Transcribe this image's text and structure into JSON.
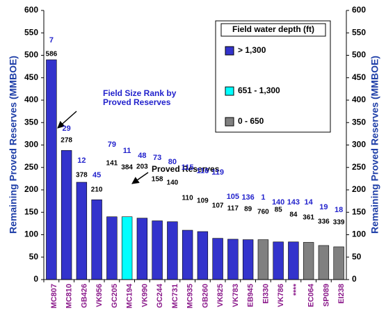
{
  "chart_data": {
    "type": "bar",
    "y_label": "Remaining Proved Reserves (MMBOE)",
    "y2_label": "Remaining Proved Reserves (MMBOE)",
    "categories": [
      "MC807",
      "MC810",
      "GB426",
      "VK956",
      "GC205",
      "MC194",
      "VK990",
      "GC244",
      "MC731",
      "MC935",
      "GB260",
      "VK825",
      "VK783",
      "EB945",
      "EI330",
      "VK786",
      "****",
      "EC064",
      "SP089",
      "EI238"
    ],
    "values": [
      490,
      288,
      217,
      178,
      140,
      140,
      137,
      131,
      129,
      110,
      107,
      92,
      90,
      89,
      89,
      84,
      84,
      83,
      76,
      73
    ],
    "colors": [
      "#3333cc",
      "#3333cc",
      "#3333cc",
      "#3333cc",
      "#3333cc",
      "#00ffff",
      "#3333cc",
      "#3333cc",
      "#3333cc",
      "#3333cc",
      "#3333cc",
      "#3333cc",
      "#3333cc",
      "#3333cc",
      "#808080",
      "#3333cc",
      "#3333cc",
      "#808080",
      "#808080",
      "#808080"
    ],
    "proved_reserves": [
      586,
      278,
      378,
      210,
      141,
      384,
      203,
      158,
      140,
      110,
      109,
      107,
      117,
      89,
      760,
      85,
      84,
      361,
      336,
      339
    ],
    "size_rank": [
      7,
      29,
      12,
      45,
      79,
      11,
      48,
      73,
      80,
      115,
      116,
      119,
      105,
      136,
      1,
      140,
      143,
      14,
      19,
      18
    ],
    "ylim": [
      0,
      600
    ],
    "yticks": [
      0,
      50,
      100,
      150,
      200,
      250,
      300,
      350,
      400,
      450,
      500,
      550,
      600
    ],
    "y2lim": [
      0,
      600
    ],
    "y2ticks": [
      0,
      50,
      100,
      150,
      200,
      250,
      300,
      350,
      400,
      450,
      500,
      550,
      600
    ],
    "legend": {
      "title": "Field water depth (ft)",
      "items": [
        {
          "label": "> 1,300",
          "color": "#3333cc"
        },
        {
          "label": "651 - 1,300",
          "color": "#00ffff"
        },
        {
          "label": "0 - 650",
          "color": "#808080"
        }
      ]
    },
    "annotations": {
      "rank_note": [
        "Field Size Rank by",
        "Proved Reserves"
      ],
      "reserves_note": "Proved Reserves"
    }
  }
}
